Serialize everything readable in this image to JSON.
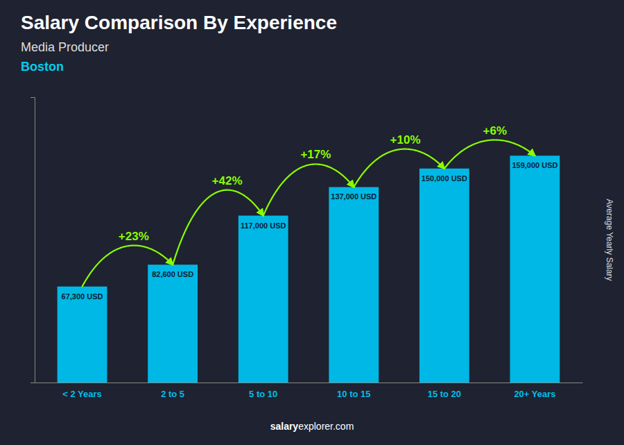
{
  "chart_data": {
    "type": "bar",
    "title": "Salary Comparison By Experience",
    "subtitle": [
      "Media Producer",
      "Boston"
    ],
    "ylabel": "Average Yearly Salary",
    "categories": [
      "< 2 Years",
      "2 to 5",
      "5 to 10",
      "10 to 15",
      "15 to 20",
      "20+ Years"
    ],
    "values": [
      67300,
      82600,
      117000,
      137000,
      150000,
      159000
    ],
    "value_labels": [
      "67,300 USD",
      "82,600 USD",
      "117,000 USD",
      "137,000 USD",
      "150,000 USD",
      "159,000 USD"
    ],
    "data_labels": true,
    "color": "#00B8E6",
    "ylim": [
      0,
      200000
    ],
    "tick_labels": "x",
    "grid": false,
    "annotations": [
      {
        "text": "+23%",
        "color": "#88FF00"
      },
      {
        "text": "+42%",
        "color": "#88FF00"
      },
      {
        "text": "+17%",
        "color": "#88FF00"
      },
      {
        "text": "+10%",
        "color": "#88FF00"
      },
      {
        "text": "+6%",
        "color": "#88FF00"
      }
    ],
    "watermark": [
      "salary",
      "explorer.com"
    ]
  }
}
